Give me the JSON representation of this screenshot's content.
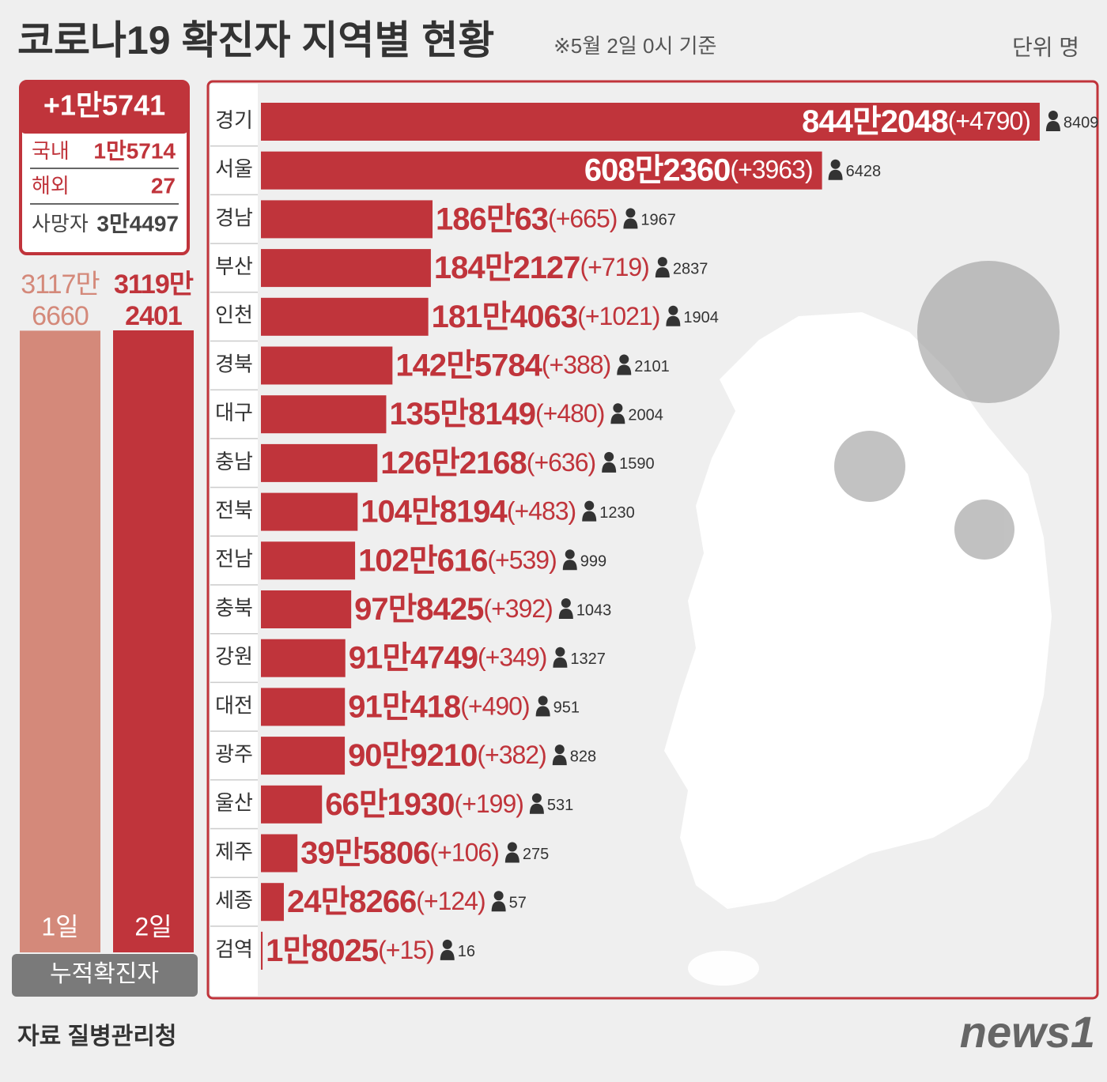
{
  "title": "코로나19 확진자 지역별 현황",
  "subtitle": "※5월 2일 0시 기준",
  "unit": "단위 명",
  "source": "자료  질병관리청",
  "logo": "news1",
  "summary": {
    "total": "+1만5741",
    "rows": [
      [
        "국내",
        "1만5714"
      ],
      [
        "해외",
        "27"
      ],
      [
        "사망자",
        "3만4497"
      ]
    ]
  },
  "chart_data": [
    {
      "type": "bar",
      "xlabel": "누적확진자",
      "categories": [
        "1일",
        "2일"
      ],
      "values": [
        31176660,
        31192401
      ],
      "value_labels": [
        "3117만 6660",
        "3119만 2401"
      ],
      "colors": [
        "#d4897a",
        "#c0343b"
      ],
      "ylim": [
        0,
        31192401
      ]
    },
    {
      "type": "barh",
      "color": "#c0343b",
      "categories": [
        "경기",
        "서울",
        "경남",
        "부산",
        "인천",
        "경북",
        "대구",
        "충남",
        "전북",
        "전남",
        "충북",
        "강원",
        "대전",
        "광주",
        "울산",
        "제주",
        "세종",
        "검역"
      ],
      "values": [
        8442048,
        6082360,
        1860063,
        1842127,
        1814063,
        1425784,
        1358149,
        1262168,
        1048194,
        1020616,
        978425,
        914749,
        910418,
        909210,
        661930,
        395806,
        248266,
        18025
      ],
      "value_labels": [
        "844만2048",
        "608만2360",
        "186만63",
        "184만2127",
        "181만4063",
        "142만5784",
        "135만8149",
        "126만2168",
        "104만8194",
        "102만616",
        "97만8425",
        "91만4749",
        "91만418",
        "90만9210",
        "66만1930",
        "39만5806",
        "24만8266",
        "1만8025"
      ],
      "increase_labels": [
        "(+4790)",
        "(+3963)",
        "(+665)",
        "(+719)",
        "(+1021)",
        "(+388)",
        "(+480)",
        "(+636)",
        "(+483)",
        "(+539)",
        "(+392)",
        "(+349)",
        "(+490)",
        "(+382)",
        "(+199)",
        "(+106)",
        "(+124)",
        "(+15)"
      ],
      "deaths": [
        8409,
        6428,
        1967,
        2837,
        1904,
        2101,
        2004,
        1590,
        1230,
        999,
        1043,
        1327,
        951,
        828,
        531,
        275,
        57,
        16
      ],
      "xlim": [
        0,
        9000000
      ]
    }
  ]
}
